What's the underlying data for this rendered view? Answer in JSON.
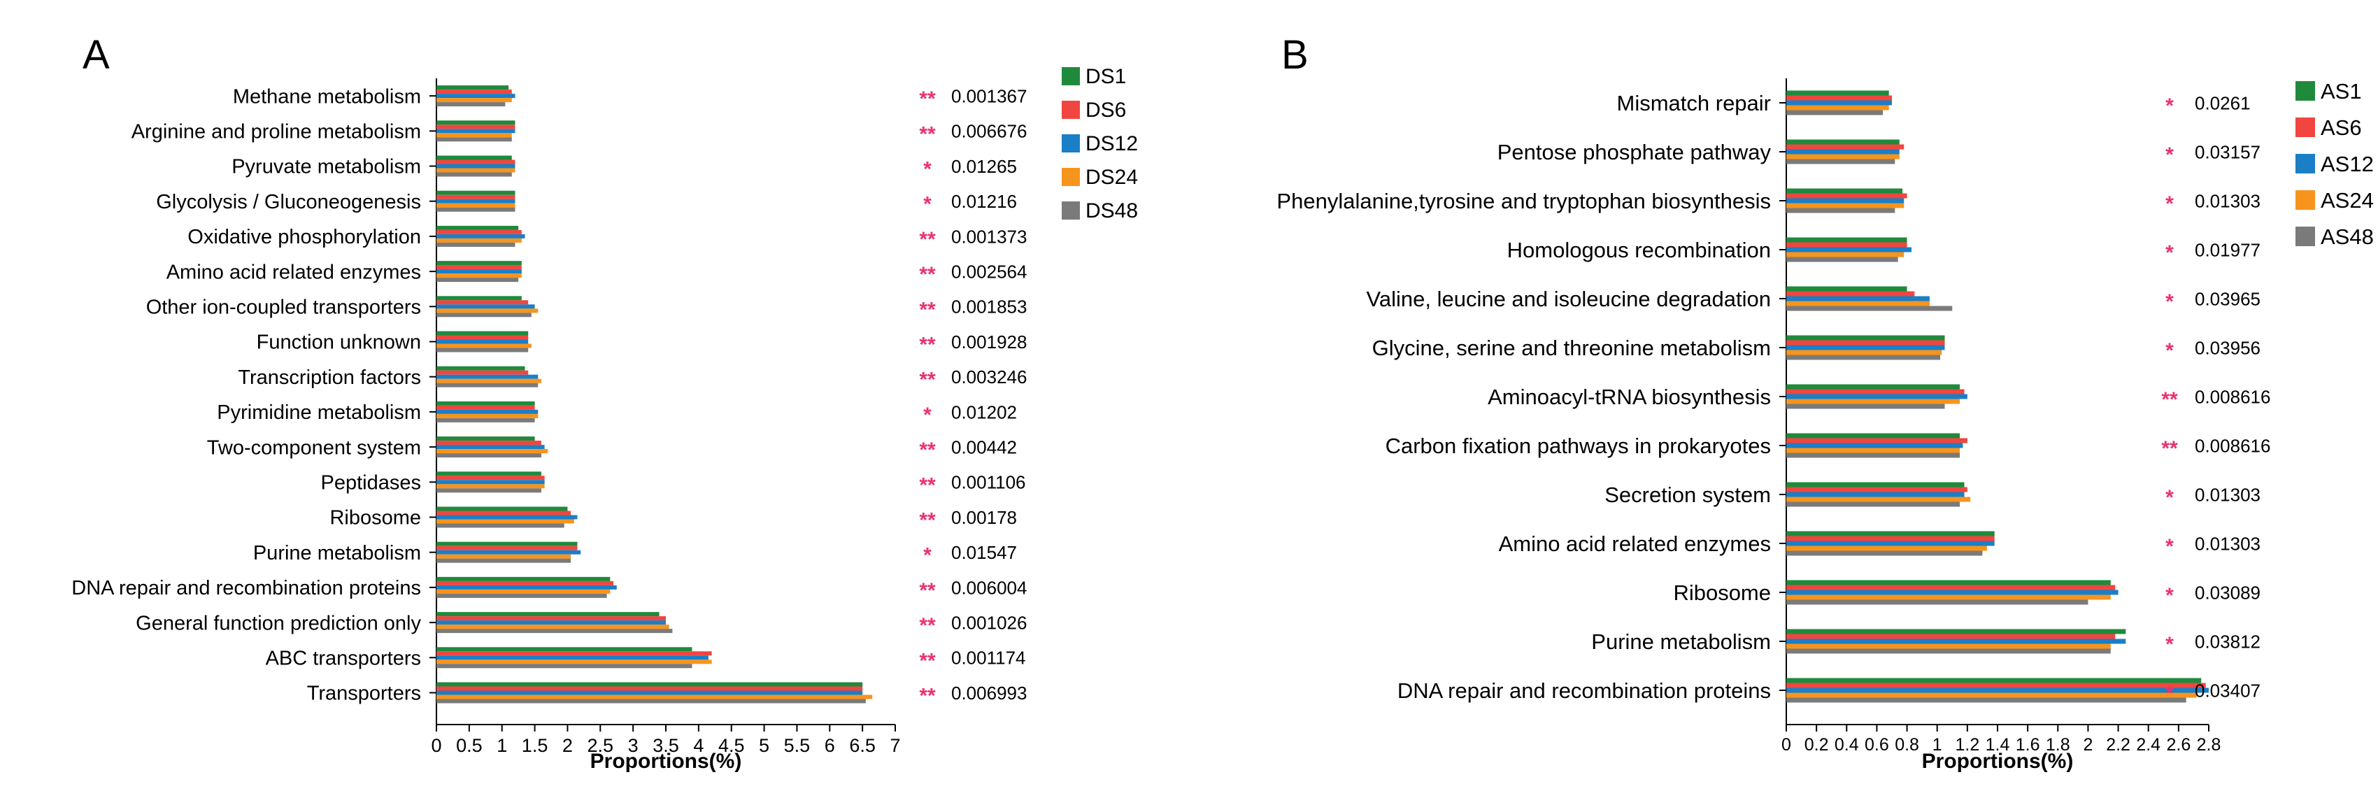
{
  "colors": {
    "series": [
      "#1f8a3c",
      "#f0463f",
      "#1a7fc7",
      "#f7941d",
      "#7a7a7a"
    ],
    "star": "#e8336e",
    "axis": "#000000"
  },
  "chart_data": [
    {
      "panel": "A",
      "type": "bar",
      "orientation": "horizontal",
      "xlabel": "Proportions(%)",
      "xlim": [
        0,
        7
      ],
      "xticks": [
        0,
        0.5,
        1,
        1.5,
        2,
        2.5,
        3,
        3.5,
        4,
        4.5,
        5,
        5.5,
        6,
        6.5,
        7
      ],
      "xtick_labels": [
        "0",
        "0.5",
        "1",
        "1.5",
        "2",
        "2.5",
        "3",
        "3.5",
        "4",
        "4.5",
        "5",
        "5.5",
        "6",
        "6.5",
        "7"
      ],
      "categories": [
        "Methane metabolism",
        "Arginine and proline metabolism",
        "Pyruvate metabolism",
        "Glycolysis / Gluconeogenesis",
        "Oxidative phosphorylation",
        "Amino acid related enzymes",
        "Other ion-coupled transporters",
        "Function unknown",
        "Transcription factors",
        "Pyrimidine metabolism",
        "Two-component system",
        "Peptidases",
        "Ribosome",
        "Purine metabolism",
        "DNA repair and recombination proteins",
        "General function prediction only",
        "ABC transporters",
        "Transporters"
      ],
      "series": [
        {
          "name": "DS1",
          "values": [
            1.1,
            1.2,
            1.15,
            1.2,
            1.25,
            1.3,
            1.3,
            1.4,
            1.35,
            1.5,
            1.5,
            1.6,
            2.0,
            2.15,
            2.65,
            3.4,
            3.9,
            6.5
          ]
        },
        {
          "name": "DS6",
          "values": [
            1.15,
            1.2,
            1.2,
            1.2,
            1.3,
            1.3,
            1.4,
            1.4,
            1.4,
            1.5,
            1.6,
            1.65,
            2.05,
            2.15,
            2.7,
            3.5,
            4.2,
            6.5
          ]
        },
        {
          "name": "DS12",
          "values": [
            1.2,
            1.2,
            1.2,
            1.2,
            1.35,
            1.3,
            1.5,
            1.4,
            1.55,
            1.55,
            1.65,
            1.65,
            2.15,
            2.2,
            2.75,
            3.5,
            4.15,
            6.5
          ]
        },
        {
          "name": "DS24",
          "values": [
            1.15,
            1.15,
            1.2,
            1.2,
            1.3,
            1.3,
            1.55,
            1.45,
            1.6,
            1.55,
            1.7,
            1.65,
            2.1,
            2.05,
            2.65,
            3.55,
            4.2,
            6.65
          ]
        },
        {
          "name": "DS48",
          "values": [
            1.05,
            1.15,
            1.15,
            1.2,
            1.2,
            1.25,
            1.45,
            1.4,
            1.55,
            1.5,
            1.6,
            1.6,
            1.95,
            2.05,
            2.6,
            3.6,
            3.9,
            6.55
          ]
        }
      ],
      "stars": [
        "**",
        "**",
        "*",
        "*",
        "**",
        "**",
        "**",
        "**",
        "**",
        "*",
        "**",
        "**",
        "**",
        "*",
        "**",
        "**",
        "**",
        "**"
      ],
      "pvalues": [
        "0.001367",
        "0.006676",
        "0.01265",
        "0.01216",
        "0.001373",
        "0.002564",
        "0.001853",
        "0.001928",
        "0.003246",
        "0.01202",
        "0.00442",
        "0.001106",
        "0.00178",
        "0.01547",
        "0.006004",
        "0.001026",
        "0.001174",
        "0.006993"
      ],
      "legend": [
        "DS1",
        "DS6",
        "DS12",
        "DS24",
        "DS48"
      ]
    },
    {
      "panel": "B",
      "type": "bar",
      "orientation": "horizontal",
      "xlabel": "Proportions(%)",
      "xlim": [
        0,
        2.8
      ],
      "xticks": [
        0,
        0.2,
        0.4,
        0.6,
        0.8,
        1,
        1.2,
        1.4,
        1.6,
        1.8,
        2,
        2.2,
        2.4,
        2.6,
        2.8
      ],
      "xtick_labels": [
        "0",
        "0.2",
        "0.4",
        "0.6",
        "0.8",
        "1",
        "1.2",
        "1.4",
        "1.6",
        "1.8",
        "2",
        "2.2",
        "2.4",
        "2.6",
        "2.8"
      ],
      "categories": [
        "Mismatch repair",
        "Pentose phosphate pathway",
        "Phenylalanine,tyrosine and tryptophan biosynthesis",
        "Homologous recombination",
        "Valine, leucine and isoleucine degradation",
        "Glycine, serine and threonine metabolism",
        "Aminoacyl-tRNA biosynthesis",
        "Carbon fixation pathways in prokaryotes",
        "Secretion system",
        "Amino acid related enzymes",
        "Ribosome",
        "Purine metabolism",
        "DNA repair and recombination proteins"
      ],
      "series": [
        {
          "name": "AS1",
          "values": [
            0.68,
            0.75,
            0.77,
            0.8,
            0.8,
            1.05,
            1.15,
            1.15,
            1.18,
            1.38,
            2.15,
            2.25,
            2.75
          ]
        },
        {
          "name": "AS6",
          "values": [
            0.7,
            0.78,
            0.8,
            0.8,
            0.85,
            1.05,
            1.18,
            1.2,
            1.2,
            1.38,
            2.18,
            2.18,
            2.78
          ]
        },
        {
          "name": "AS12",
          "values": [
            0.7,
            0.75,
            0.78,
            0.83,
            0.95,
            1.05,
            1.2,
            1.17,
            1.18,
            1.38,
            2.2,
            2.25,
            2.8
          ]
        },
        {
          "name": "AS24",
          "values": [
            0.68,
            0.75,
            0.78,
            0.78,
            0.95,
            1.03,
            1.15,
            1.15,
            1.22,
            1.33,
            2.15,
            2.15,
            2.72
          ]
        },
        {
          "name": "AS48",
          "values": [
            0.64,
            0.72,
            0.72,
            0.74,
            1.1,
            1.02,
            1.05,
            1.15,
            1.15,
            1.3,
            2.0,
            2.15,
            2.65
          ]
        }
      ],
      "stars": [
        "*",
        "*",
        "*",
        "*",
        "*",
        "*",
        "**",
        "**",
        "*",
        "*",
        "*",
        "*",
        "*"
      ],
      "pvalues": [
        "0.0261",
        "0.03157",
        "0.01303",
        "0.01977",
        "0.03965",
        "0.03956",
        "0.008616",
        "0.008616",
        "0.01303",
        "0.01303",
        "0.03089",
        "0.03812",
        "0.03407"
      ],
      "legend": [
        "AS1",
        "AS6",
        "AS12",
        "AS24",
        "AS48"
      ]
    }
  ]
}
